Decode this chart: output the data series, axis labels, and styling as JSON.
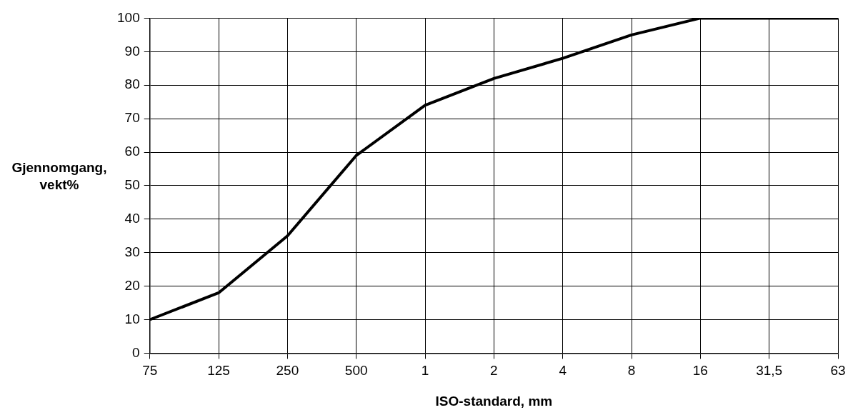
{
  "chart_data": {
    "type": "line",
    "xlabel": "ISO-standard, mm",
    "ylabel": "Gjennomgang, vekt%",
    "categories": [
      "75",
      "125",
      "250",
      "500",
      "1",
      "2",
      "4",
      "8",
      "16",
      "31,5",
      "63"
    ],
    "series": [
      {
        "color": "#000000",
        "values": [
          10,
          18,
          35,
          59,
          74,
          82,
          88,
          95,
          100,
          100,
          100
        ]
      }
    ],
    "ylim": [
      0,
      100
    ],
    "yticks": [
      0,
      10,
      20,
      30,
      40,
      50,
      60,
      70,
      80,
      90,
      100
    ],
    "grid": true,
    "legend": false,
    "marker": "none",
    "line_style": "solid"
  }
}
